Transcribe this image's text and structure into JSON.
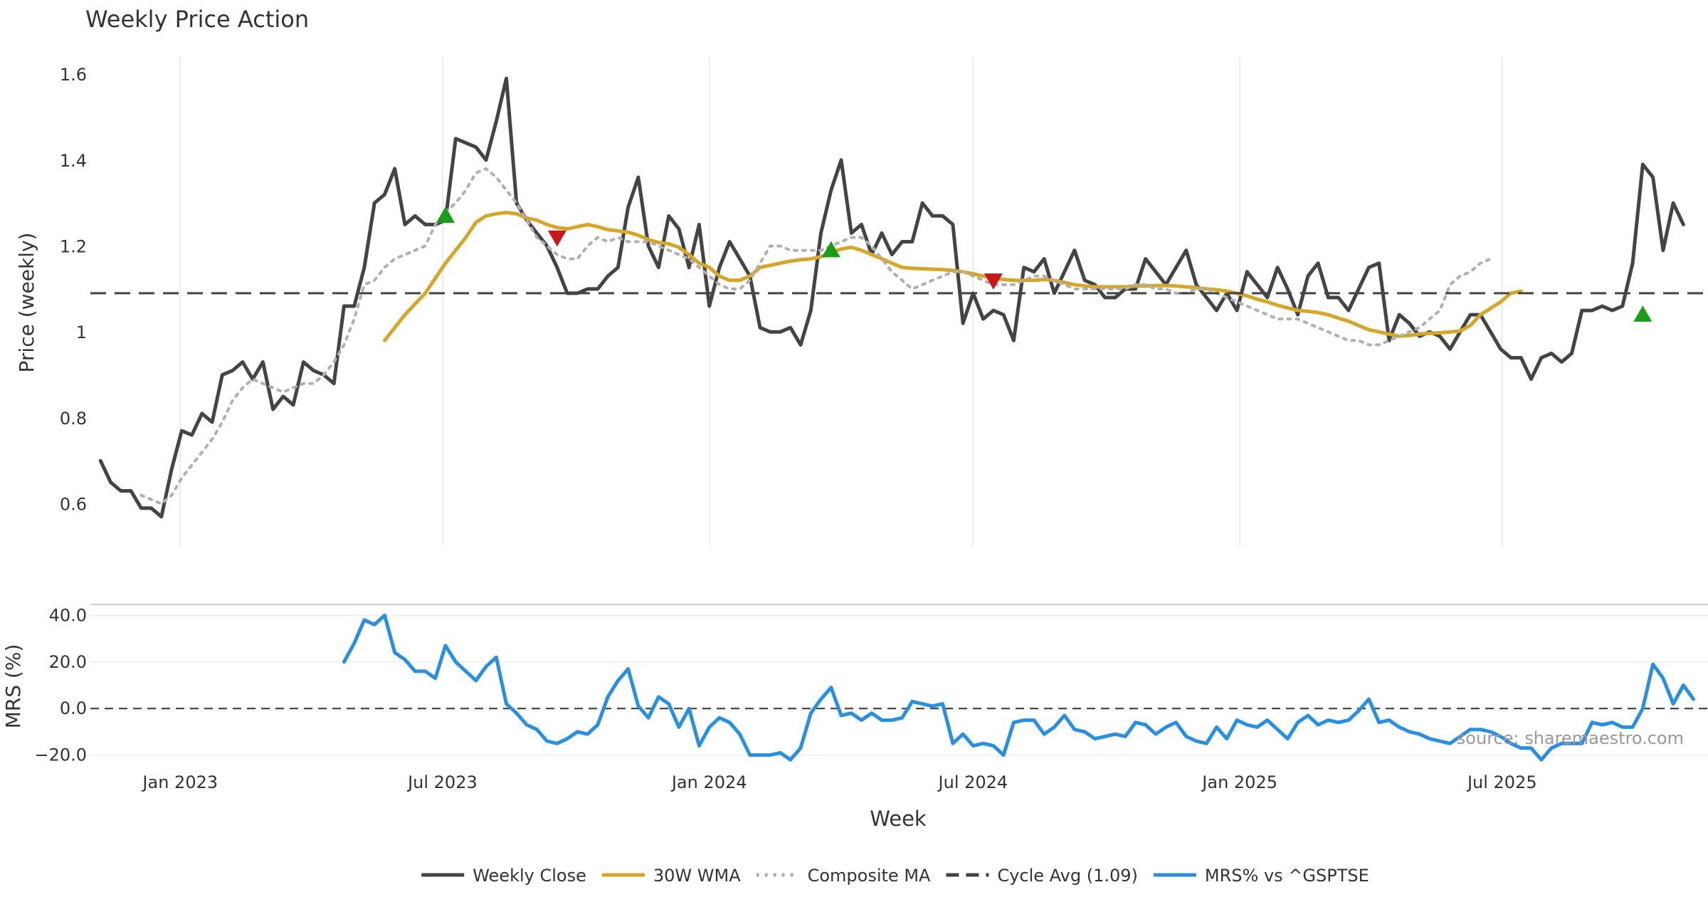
{
  "chart_data": [
    {
      "type": "line",
      "title": "Weekly Price Action",
      "ylabel": "Price (weekly)",
      "xlabel": "Week",
      "ylim": [
        0.5,
        1.64
      ],
      "yticks": [
        0.6,
        0.8,
        1,
        1.2,
        1.4,
        1.6
      ],
      "ytick_labels": [
        "0.6",
        "0.8",
        "1",
        "1.2",
        "1.4",
        "1.6"
      ],
      "x_start": "2022-11-07",
      "x_step_days": 7,
      "xlim": [
        "2022-10-31",
        "2025-11-20"
      ],
      "xticks": [
        "2023-01-01",
        "2023-07-01",
        "2024-01-01",
        "2024-07-01",
        "2025-01-01",
        "2025-07-01"
      ],
      "series": [
        {
          "name": "Weekly Close",
          "color": "#444444",
          "style": "solid",
          "start_index": 0,
          "values": [
            0.7,
            0.65,
            0.63,
            0.63,
            0.59,
            0.59,
            0.57,
            0.68,
            0.77,
            0.76,
            0.81,
            0.79,
            0.9,
            0.91,
            0.93,
            0.89,
            0.93,
            0.82,
            0.85,
            0.83,
            0.93,
            0.91,
            0.9,
            0.88,
            1.06,
            1.06,
            1.15,
            1.3,
            1.32,
            1.38,
            1.25,
            1.27,
            1.25,
            1.25,
            1.26,
            1.45,
            1.44,
            1.43,
            1.4,
            1.49,
            1.59,
            1.3,
            1.26,
            1.23,
            1.2,
            1.15,
            1.09,
            1.09,
            1.1,
            1.1,
            1.13,
            1.15,
            1.29,
            1.36,
            1.2,
            1.15,
            1.27,
            1.24,
            1.15,
            1.25,
            1.06,
            1.15,
            1.21,
            1.17,
            1.13,
            1.01,
            1.0,
            1.0,
            1.01,
            0.97,
            1.05,
            1.23,
            1.33,
            1.4,
            1.23,
            1.25,
            1.18,
            1.23,
            1.18,
            1.21,
            1.21,
            1.3,
            1.27,
            1.27,
            1.25,
            1.02,
            1.09,
            1.03,
            1.05,
            1.04,
            0.98,
            1.15,
            1.14,
            1.17,
            1.09,
            1.14,
            1.19,
            1.12,
            1.11,
            1.08,
            1.08,
            1.1,
            1.1,
            1.17,
            1.14,
            1.11,
            1.15,
            1.19,
            1.11,
            1.08,
            1.05,
            1.09,
            1.05,
            1.14,
            1.11,
            1.08,
            1.15,
            1.1,
            1.04,
            1.13,
            1.16,
            1.08,
            1.08,
            1.05,
            1.1,
            1.15,
            1.16,
            0.98,
            1.04,
            1.02,
            0.99,
            1.0,
            0.99,
            0.96,
            1.0,
            1.04,
            1.04,
            1.0,
            0.96,
            0.94,
            0.94,
            0.89,
            0.94,
            0.95,
            0.93,
            0.95,
            1.05,
            1.05,
            1.06,
            1.05,
            1.06,
            1.16,
            1.39,
            1.36,
            1.19,
            1.3,
            1.25
          ]
        },
        {
          "name": "30W WMA",
          "color": "#d4a62a",
          "style": "solid",
          "start_index": 28,
          "values": [
            0.98,
            1.01,
            1.04,
            1.065,
            1.09,
            1.125,
            1.16,
            1.19,
            1.22,
            1.255,
            1.27,
            1.275,
            1.278,
            1.275,
            1.265,
            1.26,
            1.25,
            1.243,
            1.24,
            1.245,
            1.25,
            1.245,
            1.238,
            1.235,
            1.232,
            1.225,
            1.215,
            1.208,
            1.205,
            1.197,
            1.18,
            1.16,
            1.15,
            1.13,
            1.12,
            1.12,
            1.13,
            1.15,
            1.155,
            1.16,
            1.165,
            1.168,
            1.17,
            1.175,
            1.185,
            1.193,
            1.197,
            1.19,
            1.18,
            1.17,
            1.16,
            1.15,
            1.148,
            1.147,
            1.146,
            1.145,
            1.143,
            1.14,
            1.135,
            1.13,
            1.125,
            1.122,
            1.12,
            1.12,
            1.12,
            1.122,
            1.12,
            1.115,
            1.11,
            1.107,
            1.105,
            1.105,
            1.105,
            1.105,
            1.107,
            1.107,
            1.108,
            1.108,
            1.107,
            1.105,
            1.103,
            1.1,
            1.098,
            1.095,
            1.09,
            1.084,
            1.076,
            1.07,
            1.062,
            1.056,
            1.05,
            1.048,
            1.045,
            1.04,
            1.032,
            1.025,
            1.015,
            1.005,
            1.0,
            0.995,
            0.99,
            0.992,
            0.995,
            0.997,
            0.998,
            1.0,
            1.002,
            1.015,
            1.04,
            1.055,
            1.07,
            1.09,
            1.095
          ]
        },
        {
          "name": "Composite MA",
          "color": "#b0b0b0",
          "style": "dotted",
          "start_index": 4,
          "values": [
            0.62,
            0.61,
            0.6,
            0.62,
            0.66,
            0.69,
            0.72,
            0.75,
            0.79,
            0.84,
            0.87,
            0.89,
            0.88,
            0.87,
            0.86,
            0.87,
            0.88,
            0.88,
            0.9,
            0.93,
            0.97,
            1.03,
            1.11,
            1.12,
            1.15,
            1.17,
            1.18,
            1.19,
            1.2,
            1.25,
            1.28,
            1.3,
            1.33,
            1.37,
            1.38,
            1.36,
            1.33,
            1.3,
            1.26,
            1.22,
            1.2,
            1.18,
            1.17,
            1.17,
            1.2,
            1.22,
            1.21,
            1.22,
            1.21,
            1.21,
            1.21,
            1.2,
            1.19,
            1.18,
            1.17,
            1.15,
            1.13,
            1.11,
            1.1,
            1.1,
            1.12,
            1.16,
            1.2,
            1.2,
            1.19,
            1.19,
            1.19,
            1.19,
            1.2,
            1.21,
            1.22,
            1.22,
            1.2,
            1.17,
            1.14,
            1.12,
            1.1,
            1.11,
            1.12,
            1.13,
            1.14,
            1.14,
            1.13,
            1.12,
            1.11,
            1.11,
            1.11,
            1.12,
            1.13,
            1.13,
            1.12,
            1.11,
            1.1,
            1.1,
            1.1,
            1.1,
            1.1,
            1.1,
            1.11,
            1.11,
            1.1,
            1.1,
            1.09,
            1.09,
            1.1,
            1.1,
            1.09,
            1.08,
            1.07,
            1.06,
            1.05,
            1.04,
            1.03,
            1.03,
            1.03,
            1.02,
            1.01,
            1.0,
            0.99,
            0.98,
            0.98,
            0.97,
            0.97,
            0.98,
            0.99,
            1.0,
            1.01,
            1.03,
            1.05,
            1.11,
            1.13,
            1.14,
            1.16,
            1.17
          ]
        },
        {
          "name": "Cycle Avg (1.09)",
          "color": "#444444",
          "style": "dashed",
          "value": 1.09
        }
      ],
      "markers": [
        {
          "type": "buy",
          "index": 34,
          "value": 1.27,
          "color": "#1a9e1a"
        },
        {
          "type": "sell",
          "index": 45,
          "value": 1.22,
          "color": "#c41a1a"
        },
        {
          "type": "buy",
          "index": 72,
          "value": 1.19,
          "color": "#1a9e1a"
        },
        {
          "type": "sell",
          "index": 88,
          "value": 1.12,
          "color": "#c41a1a"
        },
        {
          "type": "buy",
          "index": 152,
          "value": 1.04,
          "color": "#1a9e1a"
        }
      ]
    },
    {
      "type": "line",
      "ylabel": "MRS (%)",
      "xlabel": "Week",
      "ylim": [
        -25,
        45
      ],
      "yticks": [
        40,
        20,
        0,
        -20
      ],
      "ytick_labels": [
        "40.0",
        "20.0",
        "0.0",
        "−20.0"
      ],
      "xtick_labels": [
        "Jan 2023",
        "Jul 2023",
        "Jan 2024",
        "Jul 2024",
        "Jan 2025",
        "Jul 2025"
      ],
      "zero_line": 0,
      "annotation": "source: sharemaestro.com",
      "series": [
        {
          "name": "MRS% vs ^GSPTSE",
          "color": "#2b8fe0",
          "style": "solid",
          "start_index": 24,
          "values": [
            20,
            28,
            38,
            36,
            40,
            24,
            21,
            16,
            16,
            13,
            27,
            20,
            16,
            12,
            18,
            22,
            2,
            -2,
            -7,
            -9,
            -14,
            -15,
            -13,
            -10,
            -11,
            -7,
            5,
            12,
            17,
            1,
            -4,
            5,
            2,
            -8,
            0,
            -16,
            -8,
            -4,
            -6,
            -11,
            -20,
            -20,
            -20,
            -19,
            -22,
            -17,
            -2,
            4,
            9,
            -3,
            -2,
            -5,
            -2,
            -5,
            -5,
            -4,
            3,
            2,
            1,
            2,
            -15,
            -11,
            -16,
            -15,
            -16,
            -20,
            -6,
            -5,
            -5,
            -11,
            -8,
            -3,
            -9,
            -10,
            -13,
            -12,
            -11,
            -12,
            -6,
            -7,
            -11,
            -8,
            -6,
            -12,
            -14,
            -15,
            -8,
            -13,
            -5,
            -7,
            -8,
            -5,
            -9,
            -13,
            -6,
            -3,
            -7,
            -5,
            -6,
            -5,
            -1,
            4,
            -6,
            -5,
            -8,
            -10,
            -11,
            -13,
            -14,
            -15,
            -12,
            -9,
            -9,
            -10,
            -12,
            -15,
            -17,
            -17,
            -22,
            -17,
            -15,
            -15,
            -15,
            -6,
            -7,
            -6,
            -8,
            -8,
            0,
            19,
            13,
            2,
            10,
            4
          ]
        }
      ]
    }
  ],
  "legend": [
    {
      "label": "Weekly Close",
      "color": "#444444",
      "style": "solid"
    },
    {
      "label": "30W WMA",
      "color": "#d4a62a",
      "style": "solid"
    },
    {
      "label": "Composite MA",
      "color": "#b0b0b0",
      "style": "dotted"
    },
    {
      "label": "Cycle Avg (1.09)",
      "color": "#444444",
      "style": "dashed"
    },
    {
      "label": "MRS% vs ^GSPTSE",
      "color": "#2b8fe0",
      "style": "solid"
    }
  ]
}
